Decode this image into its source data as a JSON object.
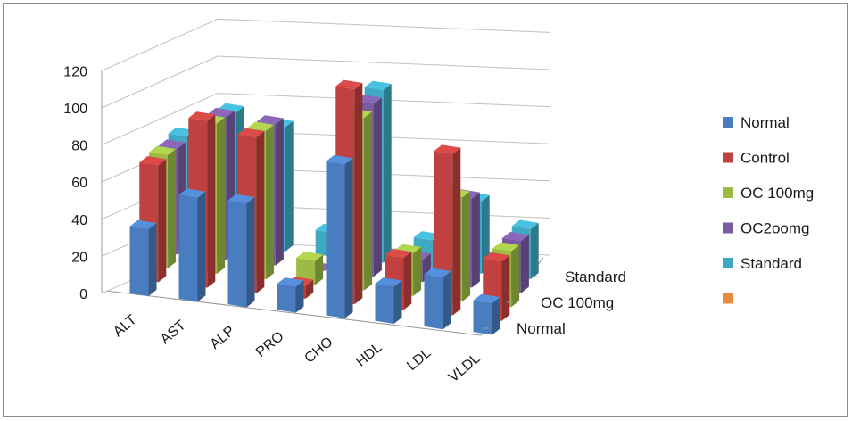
{
  "chart_data": {
    "type": "bar",
    "subtype": "3d-clustered-column",
    "categories": [
      "ALT",
      "AST",
      "ALP",
      "PRO",
      "CHO",
      "HDL",
      "LDL",
      "VLDL"
    ],
    "depth_axis_labels": [
      "Normal",
      "OC 100mg",
      "Standard"
    ],
    "series": [
      {
        "name": "Normal",
        "color": "#4a7dc0",
        "values": [
          36,
          56,
          56,
          14,
          83,
          20,
          28,
          17
        ]
      },
      {
        "name": "Control",
        "color": "#c0413f",
        "values": [
          63,
          90,
          84,
          7,
          116,
          28,
          87,
          32
        ]
      },
      {
        "name": "OC 100mg",
        "color": "#9bbb45",
        "values": [
          61,
          81,
          80,
          13,
          93,
          23,
          56,
          30
        ]
      },
      {
        "name": "OC2oomg",
        "color": "#7a5aa1",
        "values": [
          57,
          77,
          76,
          0,
          93,
          12,
          48,
          28
        ]
      },
      {
        "name": "Standard",
        "color": "#3fa9c3",
        "values": [
          56,
          72,
          67,
          13,
          93,
          15,
          39,
          27
        ]
      },
      {
        "name": "",
        "color": "#e8883a",
        "values": [
          0,
          0,
          0,
          0,
          0,
          0,
          0,
          0
        ]
      }
    ],
    "y_ticks": [
      "0",
      "20",
      "40",
      "60",
      "80",
      "100",
      "120"
    ],
    "ylim": [
      0,
      120
    ],
    "grid": true,
    "legend_position": "right"
  }
}
